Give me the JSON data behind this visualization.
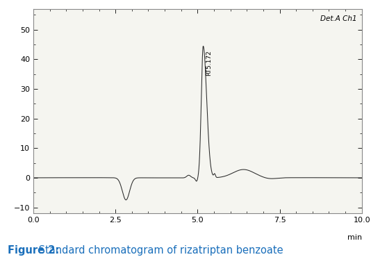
{
  "title_bold": "Figure 2:",
  "title_rest": " Standard chromatogram of rizatriptan benzoate",
  "det_label": "Det.A Ch1",
  "rt_label": "RT5.172",
  "xlabel": "min",
  "xlim": [
    0.0,
    10.0
  ],
  "ylim": [
    -12,
    57
  ],
  "yticks": [
    -10,
    0,
    10,
    20,
    30,
    40,
    50
  ],
  "xticks": [
    0.0,
    2.5,
    5.0,
    7.5,
    10.0
  ],
  "line_color": "#2a2a2a",
  "bg_plot": "#f5f5f0",
  "bg_fig": "#ffffff",
  "border_color": "#888888",
  "title_color": "#1a6fbb",
  "title_fontsize": 10.5,
  "det_fontsize": 7.5,
  "rt_fontsize": 6.5,
  "axis_fontsize": 8,
  "peak_rt": 5.172,
  "peak_height": 44.5,
  "negative_dip_x": 2.82,
  "negative_dip_y": -7.5,
  "small_bump_x": 6.4,
  "small_bump_y": 2.8
}
